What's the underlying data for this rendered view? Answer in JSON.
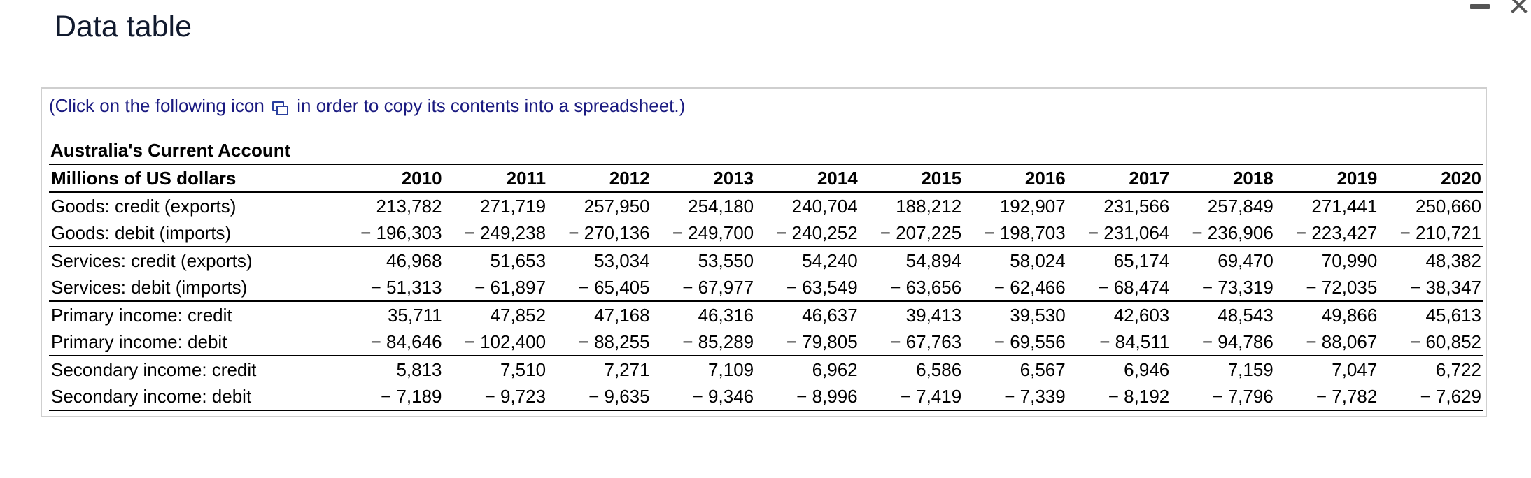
{
  "window": {
    "title": "Data table"
  },
  "hint": {
    "before": "(Click on the following icon",
    "after": "in order to copy its contents into a spreadsheet.)",
    "icon": "copy-spreadsheet-icon"
  },
  "table": {
    "caption": "Australia's Current Account",
    "unit_header": "Millions of US dollars",
    "years": [
      "2010",
      "2011",
      "2012",
      "2013",
      "2014",
      "2015",
      "2016",
      "2017",
      "2018",
      "2019",
      "2020"
    ],
    "rows": [
      {
        "label": "Goods: credit (exports)",
        "values": [
          "213,782",
          "271,719",
          "257,950",
          "254,180",
          "240,704",
          "188,212",
          "192,907",
          "231,566",
          "257,849",
          "271,441",
          "250,660"
        ]
      },
      {
        "label": "Goods: debit (imports)",
        "values": [
          "− 196,303",
          "− 249,238",
          "− 270,136",
          "− 249,700",
          "− 240,252",
          "− 207,225",
          "− 198,703",
          "− 231,064",
          "− 236,906",
          "− 223,427",
          "− 210,721"
        ]
      },
      {
        "label": "Services: credit (exports)",
        "values": [
          "46,968",
          "51,653",
          "53,034",
          "53,550",
          "54,240",
          "54,894",
          "58,024",
          "65,174",
          "69,470",
          "70,990",
          "48,382"
        ]
      },
      {
        "label": "Services: debit (imports)",
        "values": [
          "− 51,313",
          "− 61,897",
          "− 65,405",
          "− 67,977",
          "− 63,549",
          "− 63,656",
          "− 62,466",
          "− 68,474",
          "− 73,319",
          "− 72,035",
          "− 38,347"
        ]
      },
      {
        "label": "Primary income: credit",
        "values": [
          "35,711",
          "47,852",
          "47,168",
          "46,316",
          "46,637",
          "39,413",
          "39,530",
          "42,603",
          "48,543",
          "49,866",
          "45,613"
        ]
      },
      {
        "label": "Primary income: debit",
        "values": [
          "− 84,646",
          "− 102,400",
          "− 88,255",
          "− 85,289",
          "− 79,805",
          "− 67,763",
          "− 69,556",
          "− 84,511",
          "− 94,786",
          "− 88,067",
          "− 60,852"
        ]
      },
      {
        "label": "Secondary income: credit",
        "values": [
          "5,813",
          "7,510",
          "7,271",
          "7,109",
          "6,962",
          "6,586",
          "6,567",
          "6,946",
          "7,159",
          "7,047",
          "6,722"
        ]
      },
      {
        "label": "Secondary income: debit",
        "values": [
          "− 7,189",
          "− 9,723",
          "− 9,635",
          "− 9,346",
          "− 8,996",
          "− 7,419",
          "− 7,339",
          "− 8,192",
          "− 7,796",
          "− 7,782",
          "− 7,629"
        ]
      }
    ]
  }
}
